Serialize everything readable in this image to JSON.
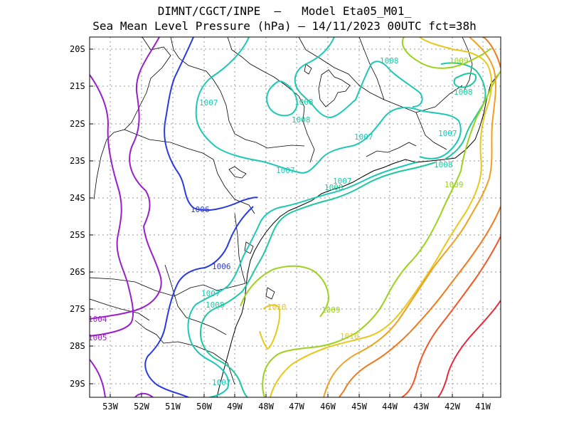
{
  "title_line1": "DIMNT/CGCT/INPE  –   Model Eta05_M01_",
  "title_line2": "Sea Mean Level Pressure (hPa) – 14/11/2023 00UTC fct=38h",
  "lat_ticks": [
    "20S",
    "21S",
    "22S",
    "23S",
    "24S",
    "25S",
    "26S",
    "27S",
    "28S",
    "29S"
  ],
  "lon_ticks": [
    "53W",
    "52W",
    "51W",
    "50W",
    "49W",
    "48W",
    "47W",
    "46W",
    "45W",
    "44W",
    "43W",
    "42W",
    "41W"
  ],
  "contour_labels": [
    {
      "text": "1004",
      "color": "#9a1fc8"
    },
    {
      "text": "1005",
      "color": "#9a1fc8"
    },
    {
      "text": "1006",
      "color": "#2a3ae0"
    },
    {
      "text": "1006",
      "color": "#2a3ae0"
    },
    {
      "text": "1007",
      "color": "#1ec8b4"
    },
    {
      "text": "1007",
      "color": "#1ec8b4"
    },
    {
      "text": "1007",
      "color": "#1ec8b4"
    },
    {
      "text": "1007",
      "color": "#1ec8b4"
    },
    {
      "text": "1007",
      "color": "#1ec8b4"
    },
    {
      "text": "1007",
      "color": "#1ec8b4"
    },
    {
      "text": "1007",
      "color": "#1ec8b4"
    },
    {
      "text": "1008",
      "color": "#1ec8a0"
    },
    {
      "text": "1008",
      "color": "#1ec8a0"
    },
    {
      "text": "1008",
      "color": "#1ec8a0"
    },
    {
      "text": "1008",
      "color": "#1ec8a0"
    },
    {
      "text": "1008",
      "color": "#1ec8a0"
    },
    {
      "text": "1008",
      "color": "#1ec8a0"
    },
    {
      "text": "1008",
      "color": "#1ec8a0"
    },
    {
      "text": "1009",
      "color": "#9cd21e"
    },
    {
      "text": "1009",
      "color": "#9cd21e"
    },
    {
      "text": "1009",
      "color": "#9cd21e"
    },
    {
      "text": "1010",
      "color": "#e6c81e"
    },
    {
      "text": "1010",
      "color": "#e6c81e"
    }
  ],
  "colors": {
    "c1004": "#9a1fc8",
    "c1006": "#2a3ae0",
    "c1007": "#1ec8b4",
    "c1008": "#1ec8a0",
    "c1009": "#9cd21e",
    "c1010": "#e6c81e",
    "c1011": "#f0a020",
    "c1012": "#f07a1e",
    "c1013": "#f05a28",
    "c1014": "#e6283c"
  }
}
